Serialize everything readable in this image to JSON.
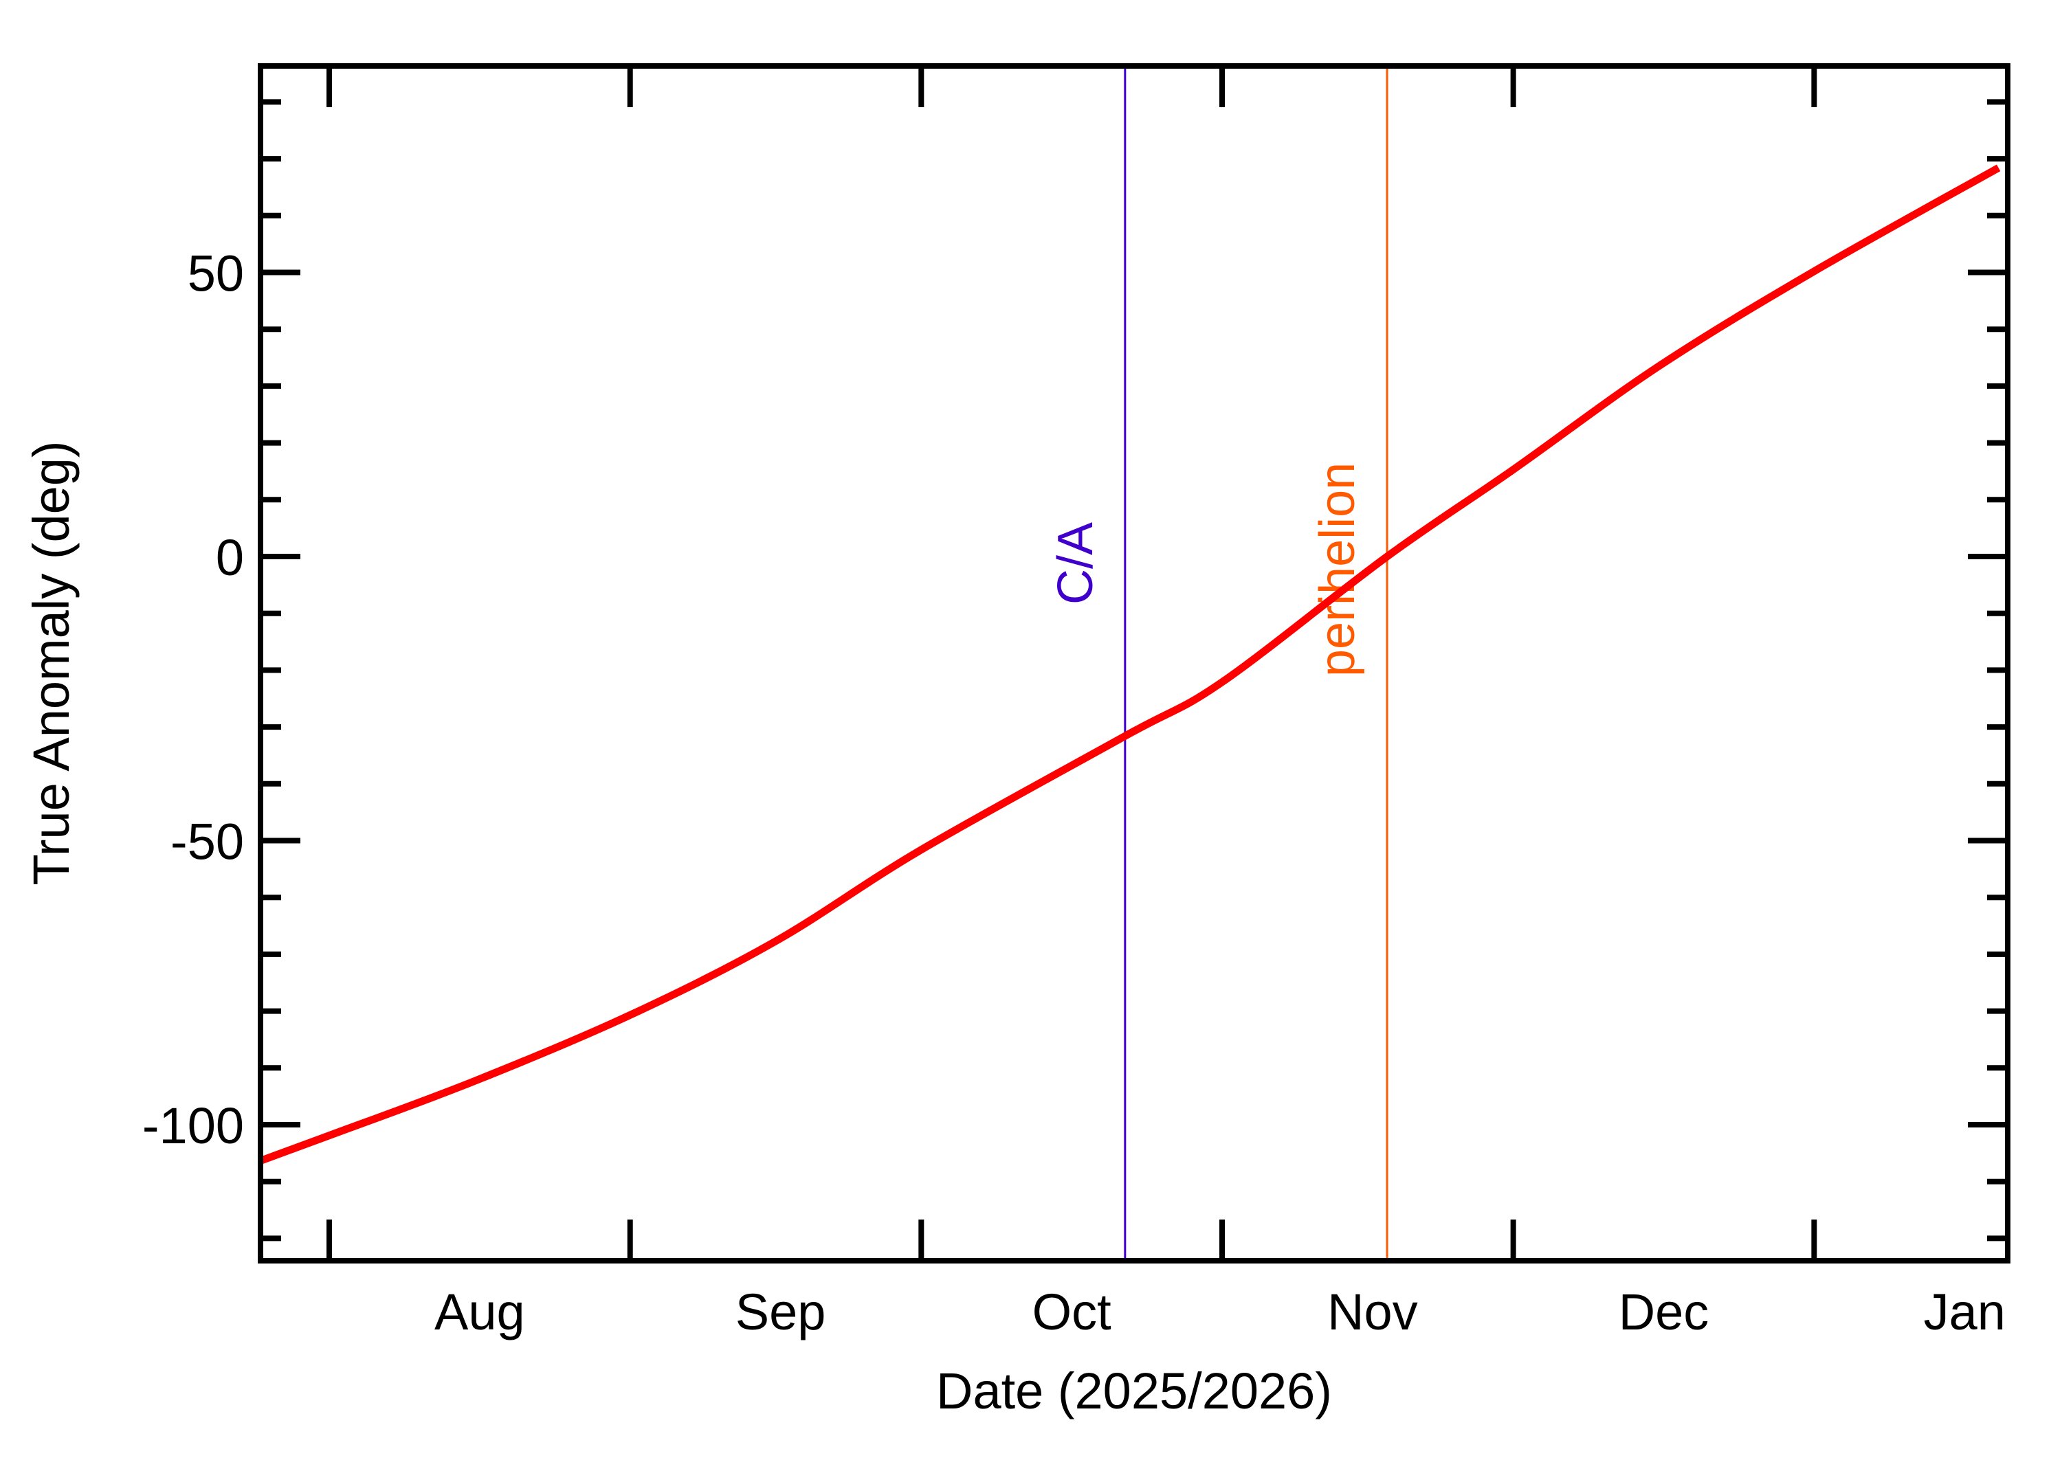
{
  "chart_data": {
    "type": "line",
    "title": "",
    "xlabel": "Date (2025/2026)",
    "ylabel": "True Anomaly (deg)",
    "x_axis": {
      "range": [
        "2025-07-25",
        "2026-01-20"
      ],
      "major_ticks": [
        "2025-08-01",
        "2025-09-01",
        "2025-10-01",
        "2025-11-01",
        "2025-12-01",
        "2026-01-01"
      ],
      "tick_labels": [
        "Aug",
        "Sep",
        "Oct",
        "Nov",
        "Dec",
        "Jan"
      ],
      "label_position": "centered mid-month"
    },
    "y_axis": {
      "range": [
        -124,
        86
      ],
      "major_ticks": [
        -100,
        -50,
        0,
        50
      ],
      "tick_labels": [
        "-100",
        "-50",
        "0",
        "50"
      ],
      "minor_tick_step": 10
    },
    "ylim": [
      -124,
      86
    ],
    "grid": false,
    "legend": null,
    "series": [
      {
        "name": "True Anomaly",
        "color": "#ff0000",
        "x": [
          "2025-07-25",
          "2025-08-01",
          "2025-08-16",
          "2025-09-01",
          "2025-09-16",
          "2025-10-01",
          "2025-10-22",
          "2025-11-01",
          "2025-11-18",
          "2025-12-01",
          "2025-12-16",
          "2026-01-01",
          "2026-01-20"
        ],
        "values": [
          -106.3,
          -101.9,
          -92.3,
          -80.7,
          -67.7,
          -51.6,
          -31.6,
          -22.1,
          0.0,
          15.3,
          33.5,
          50.2,
          68.4
        ]
      }
    ],
    "annotations": [
      {
        "label": "C/A",
        "type": "vertical-line",
        "x": "2025-10-22",
        "color": "#4000cc"
      },
      {
        "label": "perihelion",
        "type": "vertical-line",
        "x": "2025-11-18",
        "color": "#ff5a00"
      }
    ]
  }
}
